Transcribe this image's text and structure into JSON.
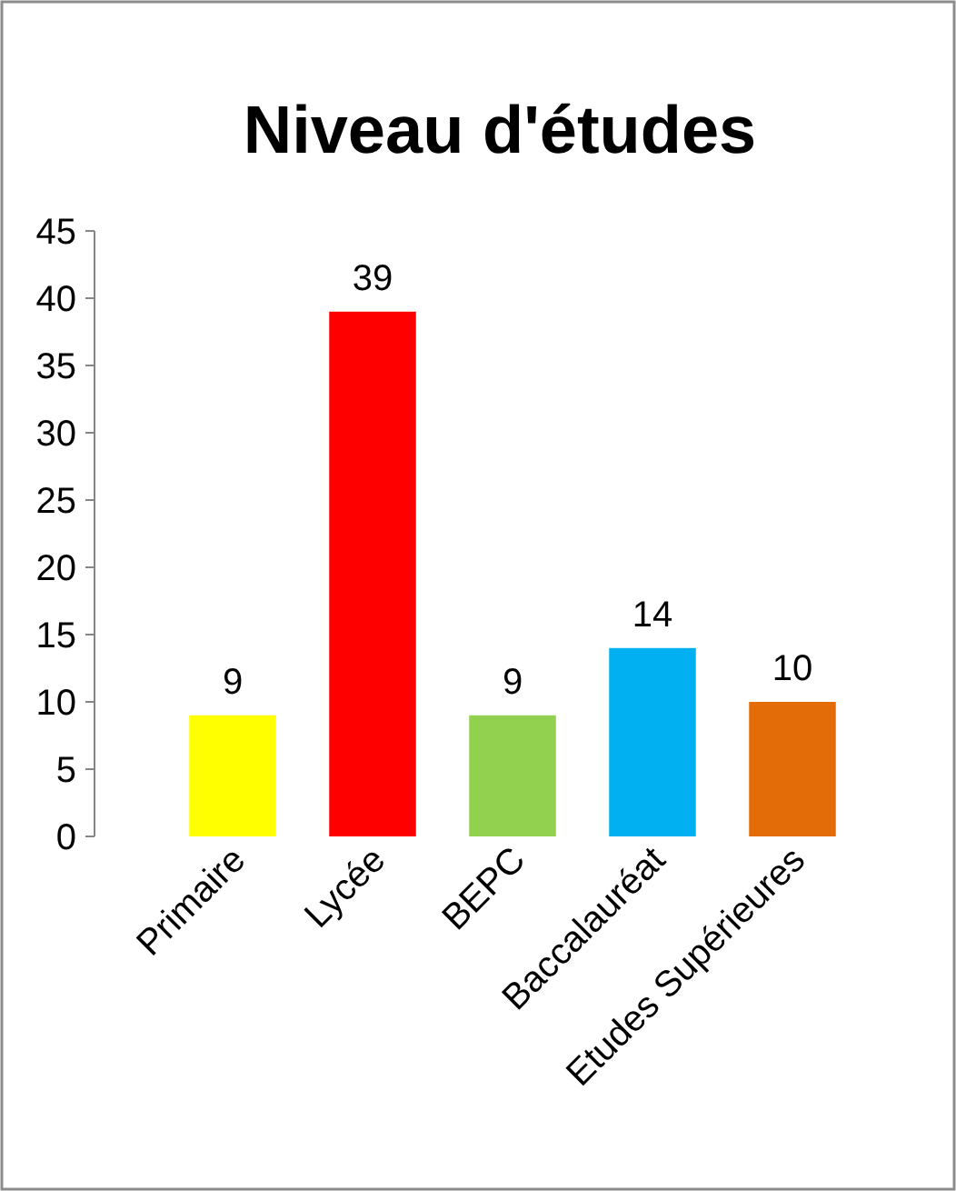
{
  "chart_data": {
    "type": "bar",
    "title": "Niveau d'études",
    "categories": [
      "Primaire",
      "Lycée",
      "BEPC",
      "Baccalauréat",
      "Etudes Supérieures"
    ],
    "values": [
      9,
      39,
      9,
      14,
      10
    ],
    "colors": [
      "#ffff00",
      "#ff0000",
      "#92d050",
      "#00b0f0",
      "#e36c09"
    ],
    "ylim": [
      0,
      45
    ],
    "yticks": [
      0,
      5,
      10,
      15,
      20,
      25,
      30,
      35,
      40,
      45
    ],
    "data_labels": true
  }
}
